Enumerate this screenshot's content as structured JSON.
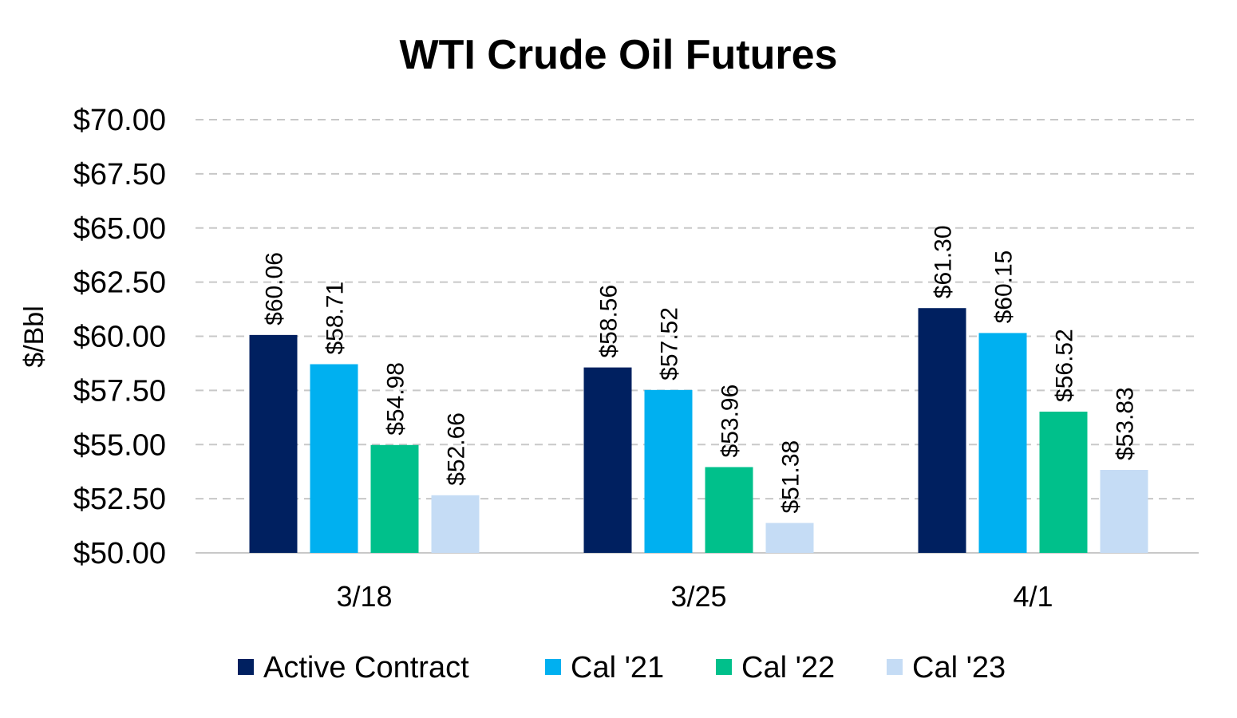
{
  "chart_data": {
    "type": "bar",
    "title": "WTI Crude Oil Futures",
    "xlabel": "",
    "ylabel": "$/Bbl",
    "ylim": [
      50,
      70
    ],
    "yticks": [
      "$50.00",
      "$52.50",
      "$55.00",
      "$57.50",
      "$60.00",
      "$62.50",
      "$65.00",
      "$67.50",
      "$70.00"
    ],
    "ytick_values": [
      50,
      52.5,
      55,
      57.5,
      60,
      62.5,
      65,
      67.5,
      70
    ],
    "grid": true,
    "legend_position": "bottom",
    "categories": [
      "3/18",
      "3/25",
      "4/1"
    ],
    "series": [
      {
        "name": "Active Contract",
        "color": "#002060",
        "values": [
          60.06,
          58.56,
          61.3
        ],
        "labels": [
          "$60.06",
          "$58.56",
          "$61.30"
        ]
      },
      {
        "name": "Cal '21",
        "color": "#00B0F0",
        "values": [
          58.71,
          57.52,
          60.15
        ],
        "labels": [
          "$58.71",
          "$57.52",
          "$60.15"
        ]
      },
      {
        "name": "Cal '22",
        "color": "#00C08B",
        "values": [
          54.98,
          53.96,
          56.52
        ],
        "labels": [
          "$54.98",
          "$53.96",
          "$56.52"
        ]
      },
      {
        "name": "Cal '23",
        "color": "#C5DCF5",
        "values": [
          52.66,
          51.38,
          53.83
        ],
        "labels": [
          "$52.66",
          "$51.38",
          "$53.83"
        ]
      }
    ]
  }
}
